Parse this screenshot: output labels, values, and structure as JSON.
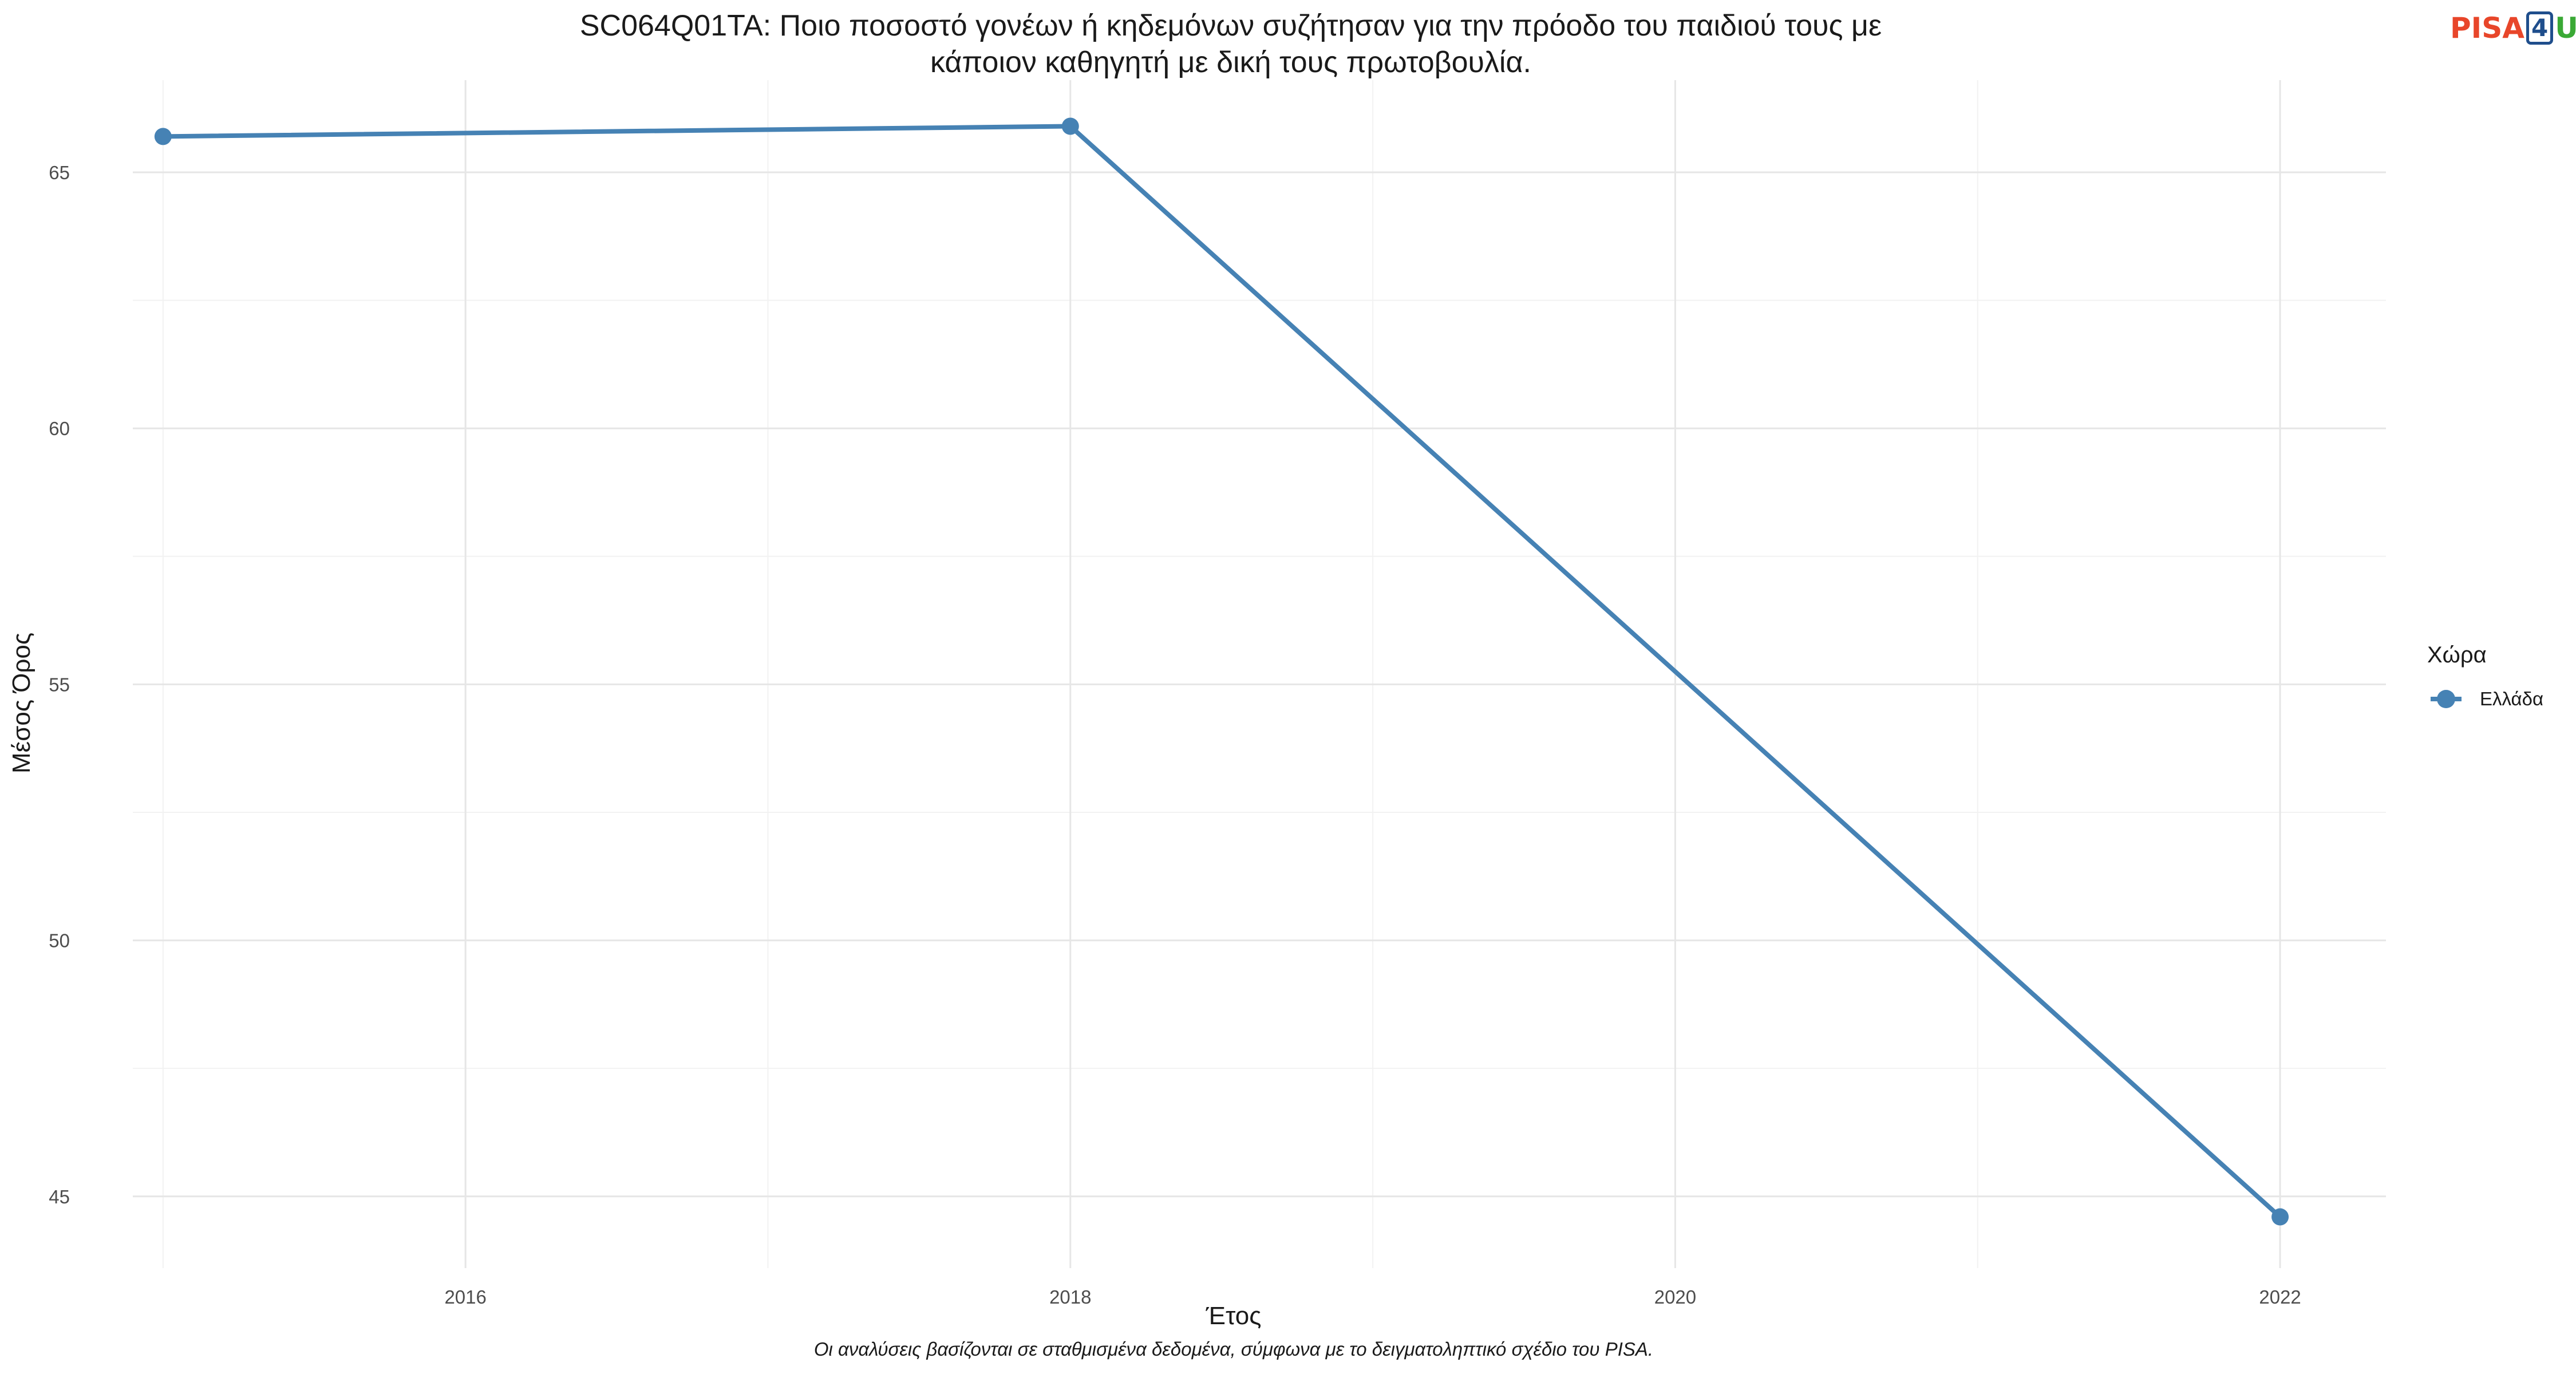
{
  "chart_data": {
    "type": "line",
    "title_line1": "SC064Q01TA: Ποιο ποσοστό γονέων ή κηδεμόνων συζήτησαν για την πρόοδο του παιδιού τους με",
    "title_line2": "κάποιον καθηγητή με δική τους πρωτοβουλία.",
    "xlabel": "Έτος",
    "ylabel": "Μέσος Όρος",
    "caption": "Οι αναλύσεις βασίζονται σε σταθμισμένα δεδομένα, σύμφωνα με το δειγματοληπτικό σχέδιο του PISA.",
    "legend_title": "Χώρα",
    "legend_position": "right",
    "grid": true,
    "xlim": [
      2014.9,
      2022.35
    ],
    "ylim": [
      43.6,
      66.8
    ],
    "x_ticks": [
      2016,
      2018,
      2020,
      2022
    ],
    "y_ticks": [
      45,
      50,
      55,
      60,
      65
    ],
    "series": [
      {
        "name": "Ελλάδα",
        "color": "#4682b4",
        "x": [
          2015,
          2018,
          2022
        ],
        "values": [
          65.7,
          65.9,
          44.6
        ]
      }
    ]
  },
  "logo": {
    "part1": "PISA",
    "part2": "4",
    "part3": "U"
  }
}
